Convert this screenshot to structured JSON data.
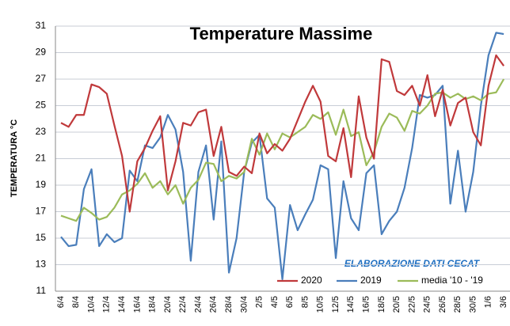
{
  "chart_data": {
    "type": "line",
    "title": "Temperature Massime",
    "y_label": "TEMPERATURA °C",
    "annotation": "ELABORAZIONE DATI CECAT",
    "legend": "bottom",
    "grid": true,
    "categories": [
      "6/4",
      null,
      "8/4",
      null,
      "10/4",
      null,
      "12/4",
      null,
      "14/4",
      null,
      "16/4",
      null,
      "18/4",
      null,
      "20/4",
      null,
      "22/4",
      null,
      "24/4",
      null,
      "26/4",
      null,
      "28/4",
      null,
      "30/4",
      null,
      "2/5",
      null,
      "4/5",
      null,
      "6/5",
      null,
      "8/5",
      null,
      "10/5",
      null,
      "12/5",
      null,
      "14/5",
      null,
      "16/5",
      null,
      "18/5",
      null,
      "20/5",
      null,
      "22/5",
      null,
      "24/5",
      null,
      "26/5",
      null,
      "28/5",
      null,
      "30/5",
      null,
      "1/6",
      null,
      "3/6"
    ],
    "ylim": [
      11,
      31
    ],
    "yticks": [
      11,
      13,
      15,
      17,
      19,
      21,
      23,
      25,
      27,
      29,
      31
    ],
    "series": [
      {
        "name": "2020",
        "color": "#c0393b",
        "values": [
          23.7,
          23.4,
          24.3,
          24.3,
          26.6,
          26.4,
          25.9,
          23.5,
          21.2,
          17.0,
          20.8,
          21.8,
          23.1,
          24.2,
          18.6,
          20.8,
          23.7,
          23.5,
          24.5,
          24.7,
          21.2,
          23.4,
          20.0,
          19.7,
          20.4,
          19.9,
          22.9,
          21.4,
          22.1,
          21.6,
          22.5,
          23.9,
          25.3,
          26.5,
          25.3,
          21.2,
          20.8,
          23.3,
          19.6,
          25.7,
          22.6,
          21.0,
          28.5,
          28.3,
          26.1,
          25.8,
          26.5,
          25.0,
          27.3,
          24.2,
          26.2,
          23.5,
          25.2,
          25.6,
          23.0,
          22.0,
          26.5,
          28.8,
          28.0
        ]
      },
      {
        "name": "2019",
        "color": "#4a7ebb",
        "values": [
          15.1,
          14.4,
          14.5,
          18.7,
          20.2,
          14.4,
          15.3,
          14.7,
          15.0,
          20.1,
          19.3,
          22.0,
          21.8,
          22.6,
          24.3,
          23.2,
          20.0,
          13.3,
          20.0,
          22.0,
          16.4,
          22.3,
          12.4,
          15.0,
          20.0,
          22.2,
          22.8,
          18.0,
          17.3,
          11.9,
          17.5,
          15.6,
          16.8,
          17.9,
          20.5,
          20.2,
          13.5,
          19.3,
          16.5,
          15.6,
          19.9,
          20.5,
          15.3,
          16.3,
          17.0,
          18.8,
          21.8,
          25.8,
          25.6,
          25.8,
          26.5,
          17.6,
          21.6,
          17.0,
          20.0,
          25.0,
          28.8,
          30.5,
          30.4
        ]
      },
      {
        "name": "media '10 - '19",
        "color": "#9bbb59",
        "values": [
          16.7,
          16.5,
          16.3,
          17.3,
          16.9,
          16.4,
          16.6,
          17.3,
          18.3,
          18.6,
          19.1,
          19.9,
          18.8,
          19.3,
          18.3,
          19.0,
          17.6,
          18.8,
          19.4,
          20.7,
          20.6,
          19.3,
          19.7,
          19.5,
          20.0,
          22.5,
          21.3,
          22.9,
          21.7,
          22.9,
          22.6,
          23.0,
          23.4,
          24.3,
          24.0,
          24.5,
          22.8,
          24.7,
          22.7,
          23.0,
          20.5,
          21.5,
          23.4,
          24.4,
          24.1,
          23.1,
          24.6,
          24.4,
          25.0,
          25.9,
          26.0,
          25.6,
          25.9,
          25.5,
          25.7,
          25.4,
          25.9,
          26.0,
          27.0
        ]
      }
    ]
  }
}
